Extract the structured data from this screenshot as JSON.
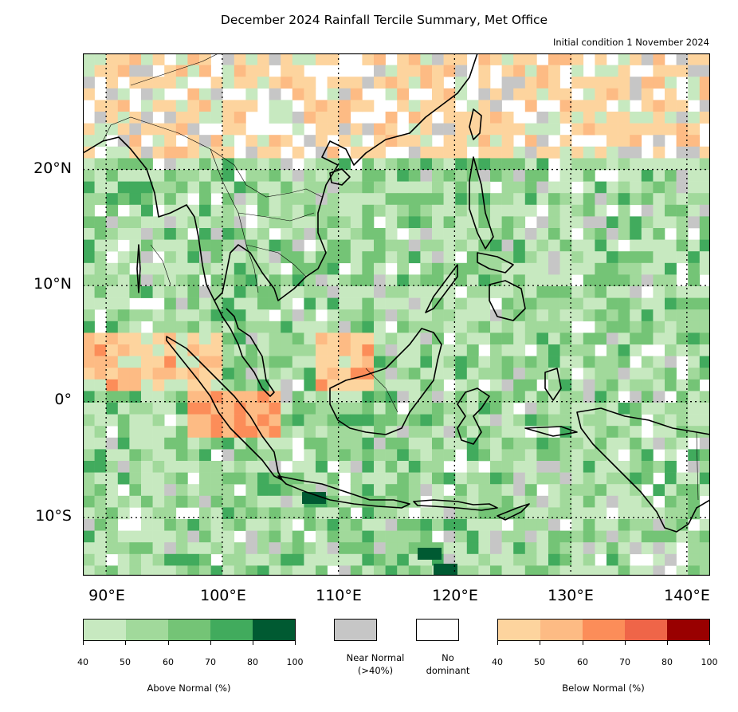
{
  "title": "December 2024 Rainfall Tercile Summary, Met Office",
  "subtitle": "Initial condition 1 November 2024",
  "map": {
    "region": "Southeast Asia",
    "lon_range": [
      88,
      142
    ],
    "lat_range": [
      -15,
      30
    ],
    "lat_labels": [
      "20°N",
      "10°N",
      "0°",
      "10°S"
    ],
    "lon_labels": [
      "90°E",
      "100°E",
      "110°E",
      "120°E",
      "130°E",
      "140°E"
    ]
  },
  "legend": {
    "above": {
      "label": "Above Normal (%)",
      "ticks": [
        "40",
        "50",
        "60",
        "70",
        "80",
        "100"
      ],
      "colors": [
        "#c7e9c0",
        "#a1d99b",
        "#74c476",
        "#41ab5d",
        "#005a32"
      ]
    },
    "near": {
      "label_line1": "Near Normal",
      "label_line2": "(>40%)",
      "color": "#c6c6c6"
    },
    "none": {
      "label_line1": "No",
      "label_line2": "dominant",
      "color": "#ffffff"
    },
    "below": {
      "label": "Below Normal (%)",
      "ticks": [
        "40",
        "50",
        "60",
        "70",
        "80",
        "100"
      ],
      "colors": [
        "#fdd49e",
        "#fdbb84",
        "#fc8d59",
        "#ef6548",
        "#990000"
      ]
    }
  }
}
